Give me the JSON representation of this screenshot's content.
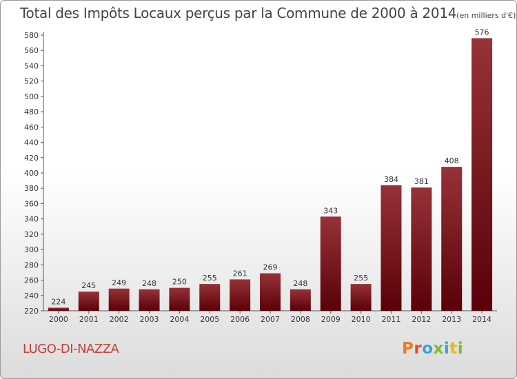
{
  "title": "Total des Impôts Locaux perçus par la Commune de 2000 à 2014",
  "unit": "(en milliers d'€)",
  "commune": "LUGO-DI-NAZZA",
  "logo": "Proxiti",
  "colors": {
    "bar_top": "#963238",
    "bar_bottom": "#5a0008",
    "commune": "#c2403c",
    "logo": [
      "#f07820",
      "#e84820",
      "#3aa0d8",
      "#7cbc2c",
      "#3aa0d8",
      "#e8b818",
      "#7cbc2c"
    ]
  },
  "chart_data": {
    "type": "bar",
    "title": "Total des Impôts Locaux perçus par la Commune de 2000 à 2014",
    "ylabel": "en milliers d'€",
    "xlabel": "",
    "categories": [
      "2000",
      "2001",
      "2002",
      "2003",
      "2004",
      "2005",
      "2006",
      "2007",
      "2008",
      "2009",
      "2010",
      "2011",
      "2012",
      "2013",
      "2014"
    ],
    "values": [
      224,
      245,
      249,
      248,
      250,
      255,
      261,
      269,
      248,
      343,
      255,
      384,
      381,
      408,
      576
    ],
    "ylim": [
      220,
      580
    ],
    "yticks": [
      220,
      240,
      260,
      280,
      300,
      320,
      340,
      360,
      380,
      400,
      420,
      440,
      460,
      480,
      500,
      520,
      540,
      560,
      580
    ],
    "grid": false,
    "legend": "none"
  }
}
